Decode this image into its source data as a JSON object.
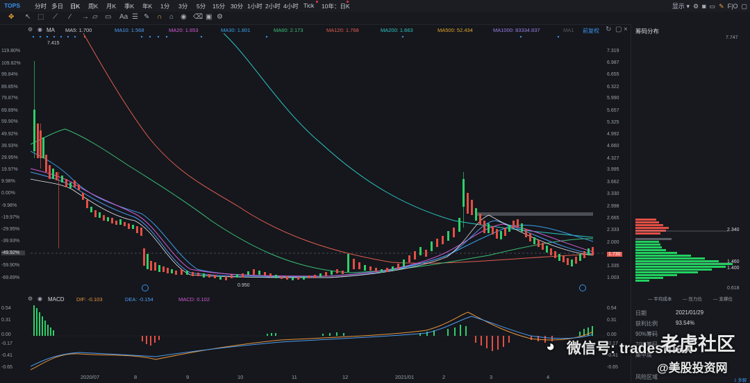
{
  "toolbar": {
    "symbol": "TOPS",
    "periods": [
      "分时",
      "多日",
      "日K",
      "周K",
      "月K",
      "季K",
      "年K",
      "1分",
      "3分",
      "5分",
      "15分",
      "30分",
      "1小时",
      "2小时",
      "4小时",
      "Tick",
      "10年：日K"
    ],
    "selected_period": "日K",
    "display_label": "显示",
    "fio_label": "F|O"
  },
  "ma_legend": {
    "name": "MA",
    "items": [
      {
        "label": "MA5: 1.700",
        "color": "#e9e9e9"
      },
      {
        "label": "MA10: 1.568",
        "color": "#4f9cf2"
      },
      {
        "label": "MA20: 1.653",
        "color": "#d35cd6"
      },
      {
        "label": "MA30: 1.801",
        "color": "#3aa0e8"
      },
      {
        "label": "MA60: 2.173",
        "color": "#3cbf77"
      },
      {
        "label": "MA120: 1.768",
        "color": "#e35d52"
      },
      {
        "label": "MA200: 1.663",
        "color": "#2ec6c6"
      },
      {
        "label": "MA500: 52.434",
        "color": "#e3a52a"
      },
      {
        "label": "MA1000: 83334.837",
        "color": "#9b7fe6"
      },
      {
        "label": "MA1",
        "color": "#555a63"
      }
    ],
    "adjust_label": "前复权"
  },
  "left_axis": [
    "119.80%",
    "109.82%",
    "99.84%",
    "89.85%",
    "79.87%",
    "69.89%",
    "59.90%",
    "49.92%",
    "39.93%",
    "29.95%",
    "19.97%",
    "9.98%",
    "0.00%",
    "-9.98%",
    "-19.97%",
    "-29.95%",
    "-39.93%",
    "-49.92%",
    "-59.90%",
    "-69.89%"
  ],
  "right_axis": [
    "7.319",
    "6.987",
    "6.655",
    "6.322",
    "5.990",
    "5.657",
    "5.325",
    "4.992",
    "4.660",
    "4.327",
    "3.995",
    "3.662",
    "3.330",
    "2.998",
    "2.665",
    "2.333",
    "2.000",
    "1.668",
    "1.335",
    "1.003"
  ],
  "current_price": "1.730",
  "high_label": "7.415",
  "low_label": "0.950",
  "macd": {
    "title": "MACD",
    "dif": "DIF: -0.103",
    "dea": "DEA: -0.154",
    "macd": "MACD: 0.102",
    "axis": [
      "0.54",
      "0.31",
      "0.00",
      "-0.17",
      "-0.41",
      "-0.65"
    ]
  },
  "x_axis": [
    "2020/07",
    "8",
    "9",
    "10",
    "11",
    "12",
    "2021/01",
    "2",
    "3",
    "4"
  ],
  "chip_panel": {
    "title": "筹码分布",
    "top_price": "7.747",
    "avg_cost_price": "2.340",
    "price_1460": "1.460",
    "price_1400": "1.400",
    "bottom_price": "0.618",
    "legend": [
      "平均成本",
      "压力位",
      "支撑位"
    ],
    "rows": [
      {
        "k": "日期",
        "v": "2021/01/29"
      },
      {
        "k": "获利比例",
        "v": "93.54%"
      },
      {
        "k": "90%筹码",
        "v": ""
      },
      {
        "k": "70%筹码",
        "v": ""
      },
      {
        "k": "集中度",
        "v": ""
      },
      {
        "k": "风险区域",
        "v": ""
      }
    ],
    "more_label": "1 多解"
  },
  "watermark": {
    "wechat": "微信号: tradesmax",
    "community": "老虎社区",
    "site": "@美股投资网"
  }
}
